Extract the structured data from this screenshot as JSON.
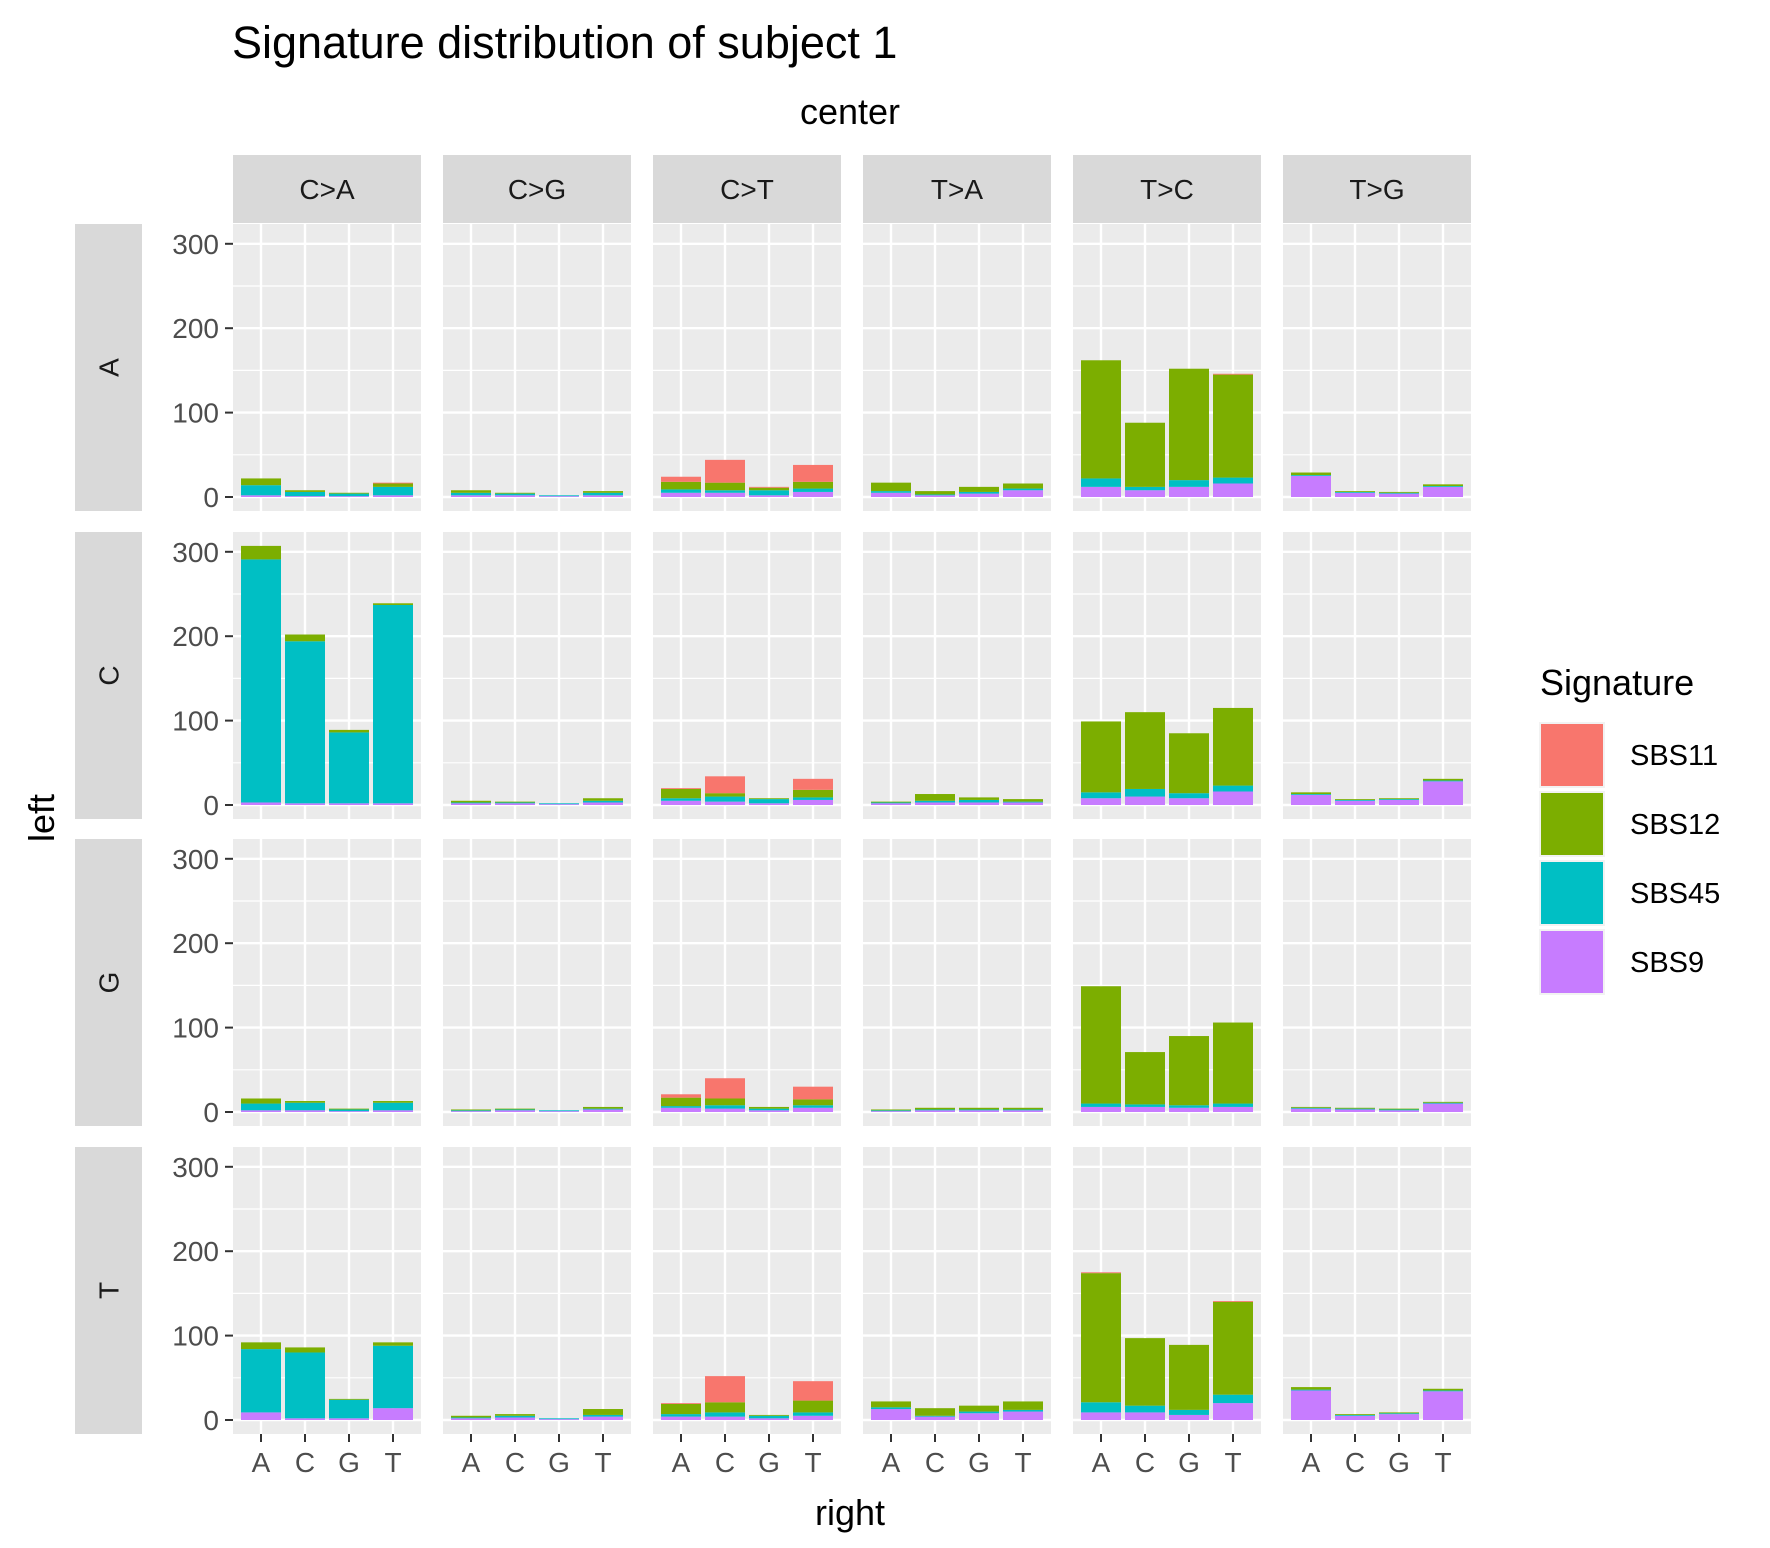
{
  "chart_data": {
    "type": "bar",
    "stacked": true,
    "title": "Signature distribution of subject 1",
    "facet_col_title": "center",
    "facet_row_title": "left",
    "xlabel": "right",
    "ylabel": "",
    "columns": [
      "C>A",
      "C>G",
      "C>T",
      "T>A",
      "T>C",
      "T>G"
    ],
    "rows": [
      "A",
      "C",
      "G",
      "T"
    ],
    "categories": [
      "A",
      "C",
      "G",
      "T"
    ],
    "ylim": [
      0,
      325
    ],
    "yticks": [
      0,
      100,
      200,
      300
    ],
    "series": [
      {
        "name": "SBS11",
        "color": "#F8766D"
      },
      {
        "name": "SBS12",
        "color": "#7CAE00"
      },
      {
        "name": "SBS45",
        "color": "#00BFC4"
      },
      {
        "name": "SBS9",
        "color": "#C77CFF"
      }
    ],
    "legend": {
      "title": "Signature",
      "position": "right"
    },
    "grid": true,
    "panels": [
      {
        "row": "A",
        "col": "C>A",
        "values": {
          "SBS11": [
            0,
            0,
            0,
            1
          ],
          "SBS12": [
            8,
            2,
            1,
            4
          ],
          "SBS45": [
            12,
            5,
            3,
            10
          ],
          "SBS9": [
            2,
            1,
            1,
            2
          ]
        }
      },
      {
        "row": "A",
        "col": "C>G",
        "values": {
          "SBS11": [
            0,
            0,
            0,
            0
          ],
          "SBS12": [
            3,
            1,
            0,
            2
          ],
          "SBS45": [
            3,
            2,
            1,
            3
          ],
          "SBS9": [
            2,
            2,
            1,
            2
          ]
        }
      },
      {
        "row": "A",
        "col": "C>T",
        "values": {
          "SBS11": [
            6,
            27,
            1,
            20
          ],
          "SBS12": [
            9,
            9,
            3,
            8
          ],
          "SBS45": [
            4,
            3,
            6,
            4
          ],
          "SBS9": [
            5,
            5,
            2,
            6
          ]
        }
      },
      {
        "row": "A",
        "col": "T>A",
        "values": {
          "SBS11": [
            0,
            0,
            0,
            0
          ],
          "SBS12": [
            10,
            4,
            6,
            6
          ],
          "SBS45": [
            2,
            1,
            2,
            2
          ],
          "SBS9": [
            5,
            2,
            4,
            8
          ]
        }
      },
      {
        "row": "A",
        "col": "T>C",
        "values": {
          "SBS11": [
            0,
            0,
            0,
            1
          ],
          "SBS12": [
            140,
            76,
            132,
            122
          ],
          "SBS45": [
            10,
            4,
            8,
            7
          ],
          "SBS9": [
            12,
            8,
            12,
            16
          ]
        }
      },
      {
        "row": "A",
        "col": "T>G",
        "values": {
          "SBS11": [
            0,
            0,
            0,
            0
          ],
          "SBS12": [
            3,
            1,
            1,
            2
          ],
          "SBS45": [
            1,
            1,
            1,
            1
          ],
          "SBS9": [
            25,
            5,
            4,
            12
          ]
        }
      },
      {
        "row": "C",
        "col": "C>A",
        "values": {
          "SBS11": [
            0,
            0,
            0,
            0
          ],
          "SBS12": [
            16,
            8,
            3,
            2
          ],
          "SBS45": [
            288,
            192,
            84,
            235
          ],
          "SBS9": [
            3,
            2,
            2,
            2
          ]
        }
      },
      {
        "row": "C",
        "col": "C>G",
        "values": {
          "SBS11": [
            0,
            0,
            0,
            0
          ],
          "SBS12": [
            2,
            1,
            0,
            3
          ],
          "SBS45": [
            1,
            1,
            1,
            2
          ],
          "SBS9": [
            2,
            2,
            1,
            3
          ]
        }
      },
      {
        "row": "C",
        "col": "C>T",
        "values": {
          "SBS11": [
            1,
            20,
            0,
            13
          ],
          "SBS12": [
            11,
            4,
            1,
            9
          ],
          "SBS45": [
            3,
            6,
            5,
            3
          ],
          "SBS9": [
            5,
            4,
            2,
            6
          ]
        }
      },
      {
        "row": "C",
        "col": "T>A",
        "values": {
          "SBS11": [
            0,
            0,
            0,
            0
          ],
          "SBS12": [
            1,
            8,
            3,
            3
          ],
          "SBS45": [
            1,
            2,
            3,
            1
          ],
          "SBS9": [
            2,
            3,
            3,
            3
          ]
        }
      },
      {
        "row": "C",
        "col": "T>C",
        "values": {
          "SBS11": [
            0,
            0,
            0,
            0
          ],
          "SBS12": [
            84,
            91,
            71,
            92
          ],
          "SBS45": [
            7,
            9,
            6,
            7
          ],
          "SBS9": [
            8,
            10,
            8,
            16
          ]
        }
      },
      {
        "row": "C",
        "col": "T>G",
        "values": {
          "SBS11": [
            0,
            0,
            0,
            0
          ],
          "SBS12": [
            2,
            1,
            1,
            2
          ],
          "SBS45": [
            1,
            1,
            1,
            1
          ],
          "SBS9": [
            12,
            5,
            6,
            28
          ]
        }
      },
      {
        "row": "G",
        "col": "C>A",
        "values": {
          "SBS11": [
            0,
            0,
            0,
            0
          ],
          "SBS12": [
            6,
            2,
            1,
            2
          ],
          "SBS45": [
            8,
            9,
            2,
            9
          ],
          "SBS9": [
            2,
            2,
            1,
            2
          ]
        }
      },
      {
        "row": "G",
        "col": "C>G",
        "values": {
          "SBS11": [
            0,
            0,
            0,
            0
          ],
          "SBS12": [
            1,
            1,
            0,
            2
          ],
          "SBS45": [
            1,
            1,
            1,
            1
          ],
          "SBS9": [
            1,
            2,
            1,
            3
          ]
        }
      },
      {
        "row": "G",
        "col": "C>T",
        "values": {
          "SBS11": [
            4,
            24,
            0,
            15
          ],
          "SBS12": [
            10,
            8,
            2,
            7
          ],
          "SBS45": [
            2,
            4,
            2,
            3
          ],
          "SBS9": [
            5,
            4,
            2,
            5
          ]
        }
      },
      {
        "row": "G",
        "col": "T>A",
        "values": {
          "SBS11": [
            0,
            0,
            0,
            0
          ],
          "SBS12": [
            1,
            2,
            2,
            2
          ],
          "SBS45": [
            1,
            1,
            1,
            1
          ],
          "SBS9": [
            1,
            2,
            2,
            2
          ]
        }
      },
      {
        "row": "G",
        "col": "T>C",
        "values": {
          "SBS11": [
            0,
            0,
            0,
            0
          ],
          "SBS12": [
            139,
            62,
            82,
            96
          ],
          "SBS45": [
            4,
            3,
            3,
            4
          ],
          "SBS9": [
            6,
            6,
            5,
            6
          ]
        }
      },
      {
        "row": "G",
        "col": "T>G",
        "values": {
          "SBS11": [
            0,
            0,
            0,
            0
          ],
          "SBS12": [
            1,
            1,
            1,
            1
          ],
          "SBS45": [
            1,
            1,
            1,
            1
          ],
          "SBS9": [
            4,
            3,
            2,
            10
          ]
        }
      },
      {
        "row": "T",
        "col": "C>A",
        "values": {
          "SBS11": [
            0,
            0,
            0,
            0
          ],
          "SBS12": [
            8,
            6,
            1,
            4
          ],
          "SBS45": [
            75,
            78,
            22,
            74
          ],
          "SBS9": [
            9,
            2,
            2,
            14
          ]
        }
      },
      {
        "row": "T",
        "col": "C>G",
        "values": {
          "SBS11": [
            0,
            0,
            0,
            0
          ],
          "SBS12": [
            2,
            2,
            0,
            7
          ],
          "SBS45": [
            1,
            2,
            1,
            2
          ],
          "SBS9": [
            2,
            3,
            1,
            4
          ]
        }
      },
      {
        "row": "T",
        "col": "C>T",
        "values": {
          "SBS11": [
            1,
            31,
            0,
            23
          ],
          "SBS12": [
            12,
            12,
            1,
            14
          ],
          "SBS45": [
            3,
            5,
            3,
            4
          ],
          "SBS9": [
            4,
            4,
            2,
            5
          ]
        }
      },
      {
        "row": "T",
        "col": "T>A",
        "values": {
          "SBS11": [
            0,
            0,
            0,
            0
          ],
          "SBS12": [
            7,
            9,
            7,
            10
          ],
          "SBS45": [
            2,
            1,
            2,
            2
          ],
          "SBS9": [
            13,
            4,
            8,
            10
          ]
        }
      },
      {
        "row": "T",
        "col": "T>C",
        "values": {
          "SBS11": [
            1,
            0,
            0,
            1
          ],
          "SBS12": [
            153,
            80,
            77,
            110
          ],
          "SBS45": [
            12,
            8,
            6,
            10
          ],
          "SBS9": [
            9,
            9,
            6,
            20
          ]
        }
      },
      {
        "row": "T",
        "col": "T>G",
        "values": {
          "SBS11": [
            0,
            0,
            0,
            0
          ],
          "SBS12": [
            3,
            1,
            1,
            2
          ],
          "SBS45": [
            1,
            1,
            1,
            1
          ],
          "SBS9": [
            35,
            5,
            7,
            34
          ]
        }
      }
    ]
  }
}
